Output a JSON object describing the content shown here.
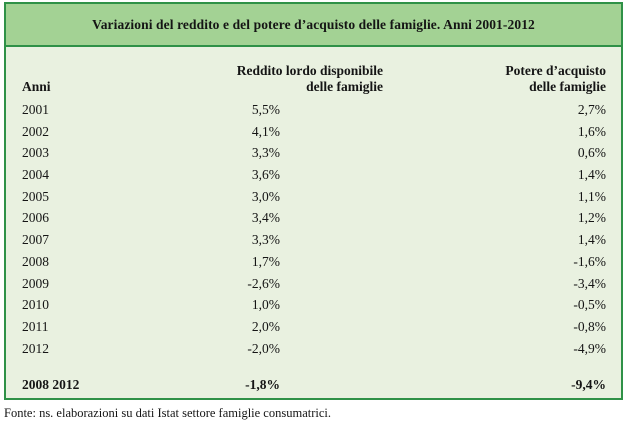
{
  "table": {
    "title": "Variazioni del reddito e del potere d’acquisto delle famiglie. Anni 2001-2012",
    "columns": {
      "anni": "Anni",
      "reddito_line1": "Reddito lordo disponibile",
      "reddito_line2": "delle famiglie",
      "potere_line1": "Potere d’acquisto",
      "potere_line2": "delle famiglie"
    },
    "rows": [
      {
        "year": "2001",
        "reddito": "5,5%",
        "potere": "2,7%"
      },
      {
        "year": "2002",
        "reddito": "4,1%",
        "potere": "1,6%"
      },
      {
        "year": "2003",
        "reddito": "3,3%",
        "potere": "0,6%"
      },
      {
        "year": "2004",
        "reddito": "3,6%",
        "potere": "1,4%"
      },
      {
        "year": "2005",
        "reddito": "3,0%",
        "potere": "1,1%"
      },
      {
        "year": "2006",
        "reddito": "3,4%",
        "potere": "1,2%"
      },
      {
        "year": "2007",
        "reddito": "3,3%",
        "potere": "1,4%"
      },
      {
        "year": "2008",
        "reddito": "1,7%",
        "potere": "-1,6%"
      },
      {
        "year": "2009",
        "reddito": "-2,6%",
        "potere": "-3,4%"
      },
      {
        "year": "2010",
        "reddito": "1,0%",
        "potere": "-0,5%"
      },
      {
        "year": "2011",
        "reddito": "2,0%",
        "potere": "-0,8%"
      },
      {
        "year": "2012",
        "reddito": "-2,0%",
        "potere": "-4,9%"
      }
    ],
    "summary": {
      "label": "2008 2012",
      "reddito": "-1,8%",
      "potere": "-9,4%"
    }
  },
  "footer": "Fonte: ns. elaborazioni su dati Istat settore famiglie consumatrici.",
  "colors": {
    "border": "#2f9147",
    "title_background": "#a3d294",
    "body_background": "#e9f1e0",
    "text": "#151515"
  }
}
